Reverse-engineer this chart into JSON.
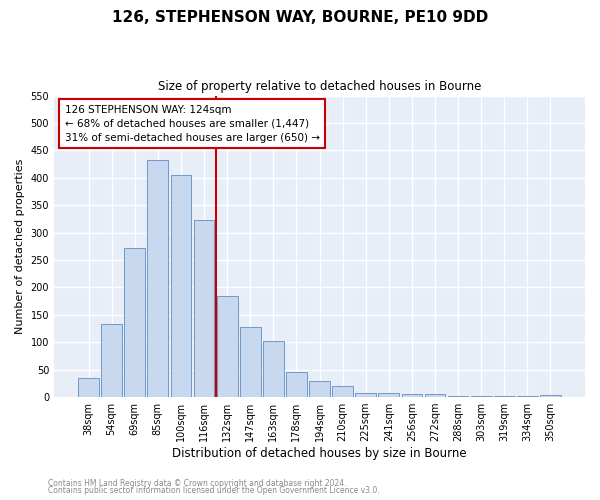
{
  "title": "126, STEPHENSON WAY, BOURNE, PE10 9DD",
  "subtitle": "Size of property relative to detached houses in Bourne",
  "xlabel": "Distribution of detached houses by size in Bourne",
  "ylabel": "Number of detached properties",
  "bar_labels": [
    "38sqm",
    "54sqm",
    "69sqm",
    "85sqm",
    "100sqm",
    "116sqm",
    "132sqm",
    "147sqm",
    "163sqm",
    "178sqm",
    "194sqm",
    "210sqm",
    "225sqm",
    "241sqm",
    "256sqm",
    "272sqm",
    "288sqm",
    "303sqm",
    "319sqm",
    "334sqm",
    "350sqm"
  ],
  "bar_values": [
    35,
    133,
    272,
    433,
    406,
    323,
    184,
    128,
    103,
    46,
    30,
    21,
    8,
    8,
    5,
    5,
    2,
    2,
    2,
    2,
    4
  ],
  "bar_color": "#c8d8ee",
  "bar_edge_color": "#7098c8",
  "vline_x": 5.5,
  "vline_color": "#cc0000",
  "ylim": [
    0,
    550
  ],
  "yticks": [
    0,
    50,
    100,
    150,
    200,
    250,
    300,
    350,
    400,
    450,
    500,
    550
  ],
  "annotation_title": "126 STEPHENSON WAY: 124sqm",
  "annotation_line1": "← 68% of detached houses are smaller (1,447)",
  "annotation_line2": "31% of semi-detached houses are larger (650) →",
  "annotation_box_edgecolor": "#cc0000",
  "footer1": "Contains HM Land Registry data © Crown copyright and database right 2024.",
  "footer2": "Contains public sector information licensed under the Open Government Licence v3.0.",
  "fig_bg_color": "#ffffff",
  "plot_bg_color": "#e8eef8",
  "grid_color": "#ffffff"
}
